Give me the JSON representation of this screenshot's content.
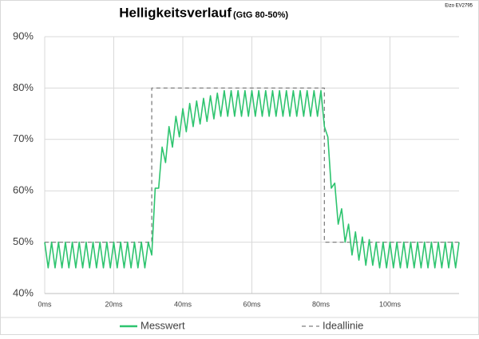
{
  "chart_data": {
    "type": "line",
    "title": "Helligkeitsverlauf",
    "subtitle": "(GtG 80-50%)",
    "annotation": "Eizo EV2795",
    "xlim": [
      0,
      120
    ],
    "xticks": [
      {
        "value": 0,
        "label": "0ms"
      },
      {
        "value": 20,
        "label": "20ms"
      },
      {
        "value": 40,
        "label": "40ms"
      },
      {
        "value": 60,
        "label": "60ms"
      },
      {
        "value": 80,
        "label": "80ms"
      },
      {
        "value": 100,
        "label": "100ms"
      }
    ],
    "ylim": [
      40,
      90
    ],
    "yticks": [
      {
        "value": 40,
        "label": "40%"
      },
      {
        "value": 50,
        "label": "50%"
      },
      {
        "value": 60,
        "label": "60%"
      },
      {
        "value": 70,
        "label": "70%"
      },
      {
        "value": 80,
        "label": "80%"
      },
      {
        "value": 90,
        "label": "90%"
      }
    ],
    "grid": true,
    "legend": "bottom",
    "series": [
      {
        "name": "Messwert",
        "color": "#2ec46f",
        "dashed": false,
        "x": [
          0,
          1,
          2,
          3,
          4,
          5,
          6,
          7,
          8,
          9,
          10,
          11,
          12,
          13,
          14,
          15,
          16,
          17,
          18,
          19,
          20,
          21,
          22,
          23,
          24,
          25,
          26,
          27,
          28,
          29,
          30,
          31,
          32,
          33,
          34,
          35,
          36,
          37,
          38,
          39,
          40,
          41,
          42,
          43,
          44,
          45,
          46,
          47,
          48,
          49,
          50,
          51,
          52,
          53,
          54,
          55,
          56,
          57,
          58,
          59,
          60,
          61,
          62,
          63,
          64,
          65,
          66,
          67,
          68,
          69,
          70,
          71,
          72,
          73,
          74,
          75,
          76,
          77,
          78,
          79,
          80,
          81,
          82,
          83,
          84,
          85,
          86,
          87,
          88,
          89,
          90,
          91,
          92,
          93,
          94,
          95,
          96,
          97,
          98,
          99,
          100,
          101,
          102,
          103,
          104,
          105,
          106,
          107,
          108,
          109,
          110,
          111,
          112,
          113,
          114,
          115,
          116,
          117,
          118,
          119,
          120
        ],
        "values": [
          50,
          45,
          50,
          45,
          50,
          45,
          50,
          45,
          50,
          45,
          50,
          45,
          50,
          45,
          50,
          45,
          50,
          45,
          50,
          45,
          50,
          45,
          50,
          45,
          50,
          45,
          50,
          45,
          50,
          45,
          50,
          47.5,
          60.5,
          60.5,
          68.5,
          65.5,
          72.5,
          68.5,
          74.5,
          70.5,
          76,
          71.5,
          77,
          72.5,
          77.5,
          73,
          78,
          73.5,
          78.5,
          74,
          79,
          74.5,
          79.5,
          74.5,
          79.5,
          74.5,
          79.5,
          74.5,
          79.5,
          74.5,
          79.5,
          74.5,
          79.5,
          74.5,
          79.5,
          74.5,
          79.5,
          74.5,
          79.5,
          74.5,
          79.5,
          74.5,
          79.5,
          74.5,
          79.5,
          74.5,
          79.5,
          74.5,
          79.5,
          74.5,
          79.5,
          72.5,
          70.5,
          60.5,
          61.5,
          53.5,
          56.5,
          50,
          53.5,
          47.5,
          52,
          46.5,
          51,
          45.5,
          50.5,
          45.5,
          50,
          45,
          50,
          45,
          50,
          45,
          50,
          45,
          50,
          45,
          50,
          45,
          50,
          45,
          50,
          45,
          50,
          45,
          50,
          45,
          50,
          45,
          50,
          45,
          50
        ]
      },
      {
        "name": "Ideallinie",
        "color": "#7f7f7f",
        "dashed": true,
        "x": [
          0,
          31,
          31,
          81,
          81,
          120
        ],
        "values": [
          50,
          50,
          80,
          80,
          50,
          50
        ]
      }
    ]
  }
}
